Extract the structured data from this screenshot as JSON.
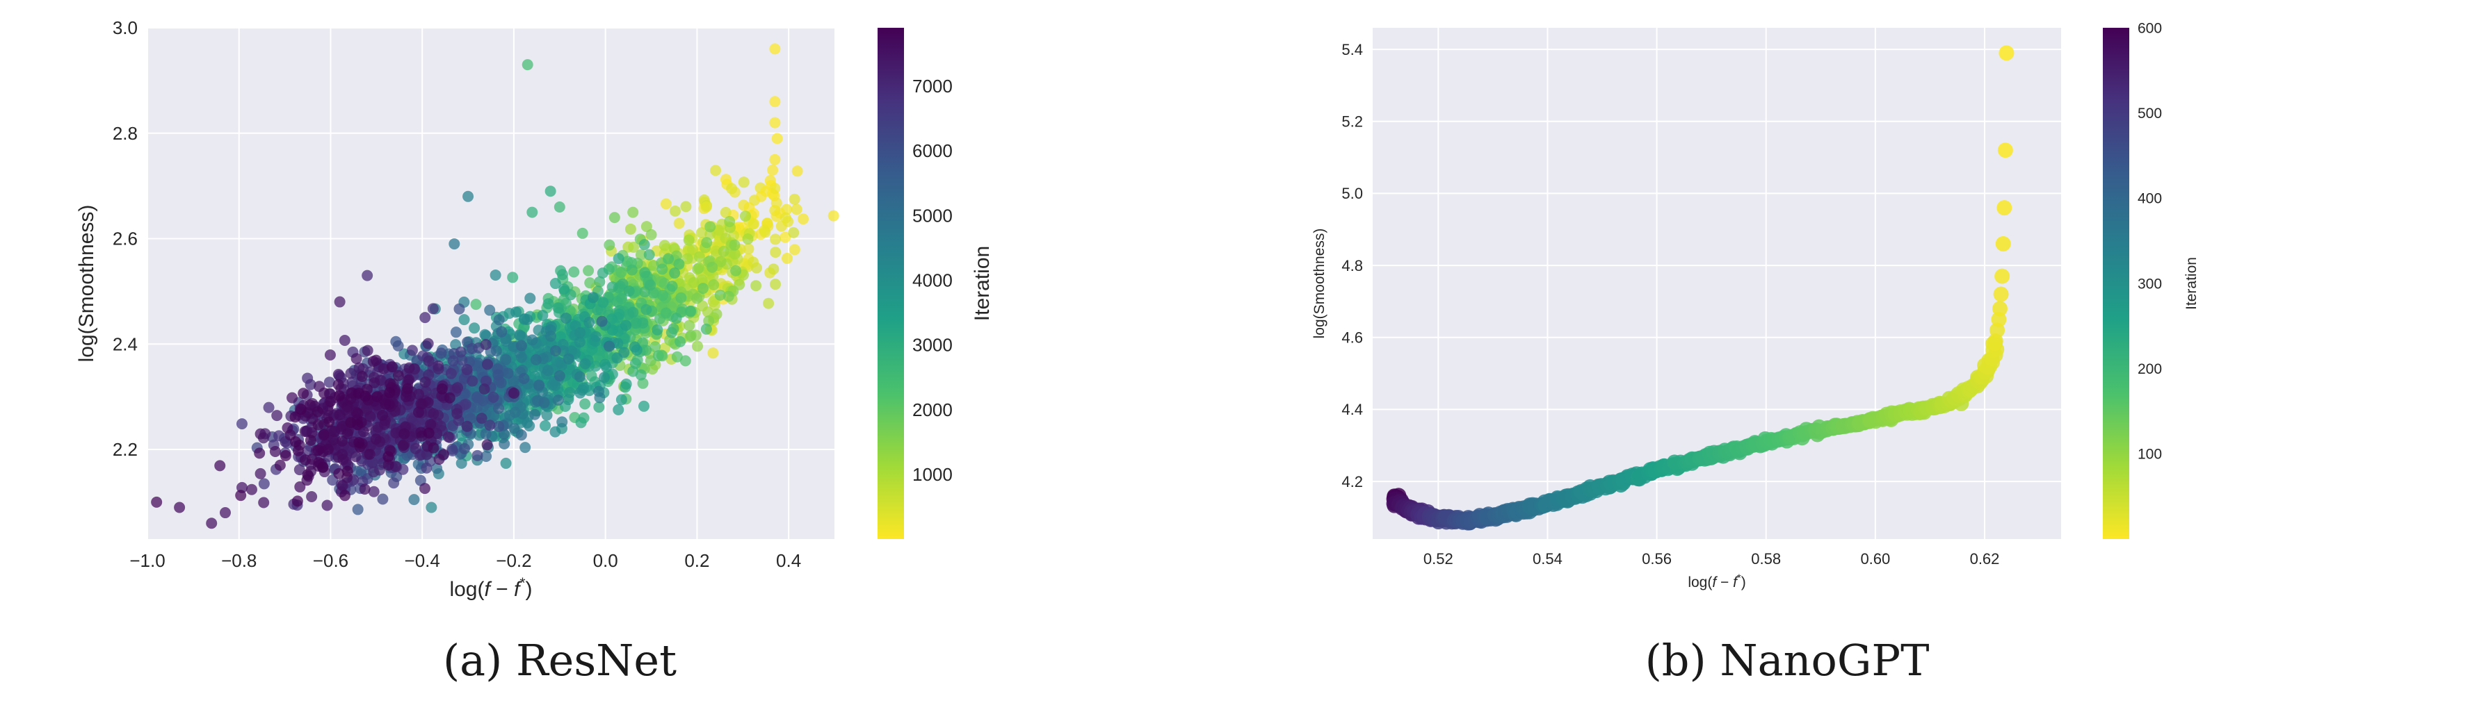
{
  "captions": {
    "left": "(a) ResNet",
    "right": "(b) NanoGPT"
  },
  "colors": {
    "plot_bg": "#eaeaf2",
    "grid": "#ffffff",
    "viridis": [
      "#fde725",
      "#a0da39",
      "#4ac16d",
      "#1fa187",
      "#277f8e",
      "#365c8d",
      "#46327e",
      "#440154"
    ]
  },
  "chart_data": [
    {
      "type": "scatter",
      "title": "",
      "xlabel": "log(f − f*)",
      "ylabel": "log(Smoothness)",
      "xlim": [
        -1.0,
        0.5
      ],
      "ylim": [
        2.03,
        3.0
      ],
      "xticks": [
        -1.0,
        -0.8,
        -0.6,
        -0.4,
        -0.2,
        0.0,
        0.2,
        0.4
      ],
      "xtick_labels": [
        "−1.0",
        "−0.8",
        "−0.6",
        "−0.4",
        "−0.2",
        "0.0",
        "0.2",
        "0.4"
      ],
      "yticks": [
        2.2,
        2.4,
        2.6,
        2.8,
        3.0
      ],
      "ytick_labels": [
        "2.2",
        "2.4",
        "2.6",
        "2.8",
        "3.0"
      ],
      "grid": true,
      "colorbar": {
        "label": "Iteration",
        "range": [
          0,
          7900
        ],
        "ticks": [
          1000,
          2000,
          3000,
          4000,
          5000,
          6000,
          7000
        ],
        "tick_labels": [
          "1000",
          "2000",
          "3000",
          "4000",
          "5000",
          "6000",
          "7000"
        ]
      },
      "series_trend": {
        "color_by": "Iteration",
        "x_by_iteration": [
          [
            0,
            0.36
          ],
          [
            500,
            0.22
          ],
          [
            1500,
            0.1
          ],
          [
            2500,
            -0.02
          ],
          [
            3500,
            -0.14
          ],
          [
            4500,
            -0.26
          ],
          [
            5500,
            -0.38
          ],
          [
            6500,
            -0.48
          ],
          [
            7900,
            -0.56
          ]
        ],
        "y_by_iteration": [
          [
            0,
            2.65
          ],
          [
            500,
            2.55
          ],
          [
            1500,
            2.48
          ],
          [
            2500,
            2.42
          ],
          [
            3500,
            2.36
          ],
          [
            4500,
            2.31
          ],
          [
            5500,
            2.28
          ],
          [
            6500,
            2.26
          ],
          [
            7900,
            2.25
          ]
        ]
      },
      "points": [
        {
          "x": -0.98,
          "y": 2.1,
          "iter": 7800
        },
        {
          "x": -0.93,
          "y": 2.09,
          "iter": 7700
        },
        {
          "x": -0.86,
          "y": 2.06,
          "iter": 7600
        },
        {
          "x": -0.83,
          "y": 2.08,
          "iter": 7500
        },
        {
          "x": -0.58,
          "y": 2.48,
          "iter": 7400
        },
        {
          "x": -0.52,
          "y": 2.53,
          "iter": 7000
        },
        {
          "x": -0.38,
          "y": 2.09,
          "iter": 4200
        },
        {
          "x": -0.3,
          "y": 2.68,
          "iter": 4500
        },
        {
          "x": -0.33,
          "y": 2.59,
          "iter": 4800
        },
        {
          "x": -0.17,
          "y": 2.93,
          "iter": 2400
        },
        {
          "x": -0.12,
          "y": 2.69,
          "iter": 3000
        },
        {
          "x": -0.16,
          "y": 2.65,
          "iter": 2800
        },
        {
          "x": -0.1,
          "y": 2.66,
          "iter": 2600
        },
        {
          "x": -0.05,
          "y": 2.61,
          "iter": 2200
        },
        {
          "x": 0.06,
          "y": 2.65,
          "iter": 1500
        },
        {
          "x": 0.02,
          "y": 2.64,
          "iter": 1800
        },
        {
          "x": 0.37,
          "y": 2.96,
          "iter": 0
        },
        {
          "x": 0.37,
          "y": 2.86,
          "iter": 10
        },
        {
          "x": 0.37,
          "y": 2.82,
          "iter": 20
        },
        {
          "x": 0.375,
          "y": 2.79,
          "iter": 30
        },
        {
          "x": 0.37,
          "y": 2.75,
          "iter": 40
        },
        {
          "x": 0.365,
          "y": 2.73,
          "iter": 50
        },
        {
          "x": 0.36,
          "y": 2.71,
          "iter": 60
        },
        {
          "x": 0.35,
          "y": 2.69,
          "iter": 70
        },
        {
          "x": 0.34,
          "y": 2.68,
          "iter": 80
        },
        {
          "x": 0.22,
          "y": 2.66,
          "iter": 300
        }
      ]
    },
    {
      "type": "scatter",
      "title": "",
      "xlabel": "log(f − f*)",
      "ylabel": "log(Smoothness)",
      "xlim": [
        0.508,
        0.634
      ],
      "ylim": [
        4.04,
        5.46
      ],
      "xticks": [
        0.52,
        0.54,
        0.56,
        0.58,
        0.6,
        0.62
      ],
      "xtick_labels": [
        "0.52",
        "0.54",
        "0.56",
        "0.58",
        "0.60",
        "0.62"
      ],
      "yticks": [
        4.2,
        4.4,
        4.6,
        4.8,
        5.0,
        5.2,
        5.4
      ],
      "ytick_labels": [
        "4.2",
        "4.4",
        "4.6",
        "4.8",
        "5.0",
        "5.2",
        "5.4"
      ],
      "grid": true,
      "colorbar": {
        "label": "Iteration",
        "range": [
          0,
          600
        ],
        "ticks": [
          100,
          200,
          300,
          400,
          500,
          600
        ],
        "tick_labels": [
          "100",
          "200",
          "300",
          "400",
          "500",
          "600"
        ]
      },
      "series_trend": {
        "color_by": "Iteration",
        "points": [
          {
            "iter": 0,
            "x": 0.624,
            "y": 5.39
          },
          {
            "iter": 2,
            "x": 0.6238,
            "y": 5.12
          },
          {
            "iter": 4,
            "x": 0.6236,
            "y": 4.96
          },
          {
            "iter": 6,
            "x": 0.6234,
            "y": 4.86
          },
          {
            "iter": 8,
            "x": 0.6232,
            "y": 4.77
          },
          {
            "iter": 10,
            "x": 0.623,
            "y": 4.72
          },
          {
            "iter": 12,
            "x": 0.6228,
            "y": 4.68
          },
          {
            "iter": 14,
            "x": 0.6226,
            "y": 4.65
          },
          {
            "iter": 17,
            "x": 0.6223,
            "y": 4.62
          },
          {
            "iter": 20,
            "x": 0.622,
            "y": 4.59
          },
          {
            "iter": 24,
            "x": 0.6215,
            "y": 4.55
          },
          {
            "iter": 30,
            "x": 0.6205,
            "y": 4.51
          },
          {
            "iter": 36,
            "x": 0.6195,
            "y": 4.49
          },
          {
            "iter": 45,
            "x": 0.6175,
            "y": 4.46
          },
          {
            "iter": 60,
            "x": 0.614,
            "y": 4.42
          },
          {
            "iter": 100,
            "x": 0.603,
            "y": 4.38
          },
          {
            "iter": 150,
            "x": 0.589,
            "y": 4.34
          },
          {
            "iter": 200,
            "x": 0.575,
            "y": 4.29
          },
          {
            "iter": 250,
            "x": 0.562,
            "y": 4.24
          },
          {
            "iter": 300,
            "x": 0.551,
            "y": 4.19
          },
          {
            "iter": 350,
            "x": 0.541,
            "y": 4.14
          },
          {
            "iter": 400,
            "x": 0.532,
            "y": 4.11
          },
          {
            "iter": 450,
            "x": 0.525,
            "y": 4.09
          },
          {
            "iter": 500,
            "x": 0.519,
            "y": 4.1
          },
          {
            "iter": 550,
            "x": 0.515,
            "y": 4.12
          },
          {
            "iter": 580,
            "x": 0.5125,
            "y": 4.14
          },
          {
            "iter": 600,
            "x": 0.5125,
            "y": 4.16
          }
        ]
      }
    }
  ]
}
